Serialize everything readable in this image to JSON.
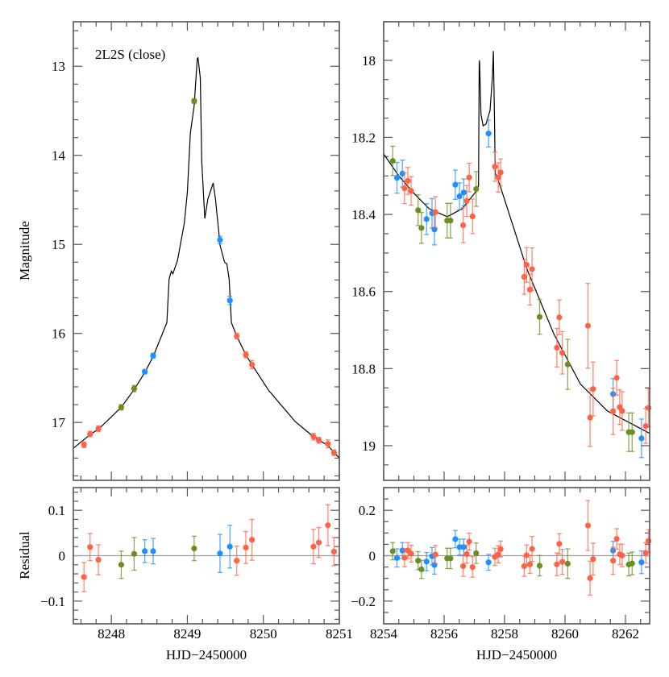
{
  "colors": {
    "red": "#ff6347",
    "green": "#6b8e23",
    "blue": "#1e90ff",
    "model": "#000000",
    "zero_line": "#999999"
  },
  "labels": {
    "ylabel_top": "Magnitude",
    "ylabel_bottom": "Residual",
    "xlabel_left": "HJD−2450000",
    "xlabel_right": "HJD−2450000",
    "annotation": "2L2S (close)"
  },
  "chart_data": [
    {
      "id": "left_lightcurve",
      "type": "scatter",
      "ylabel": "Magnitude",
      "xlim": [
        8247.5,
        8251.0
      ],
      "ylim": [
        12.5,
        17.65
      ],
      "y_inverted": true,
      "x_major": 1,
      "x_minor": 0.2,
      "y_major": 1,
      "y_minor": 0.2,
      "ytick_labels": [
        "13",
        "14",
        "15",
        "16",
        "17"
      ],
      "ytick_values": [
        13,
        14,
        15,
        16,
        17
      ],
      "annotation": "2L2S (close)",
      "points": [
        [
          8247.64,
          17.25,
          0.032,
          "red"
        ],
        [
          8247.72,
          17.13,
          0.03,
          "red"
        ],
        [
          8247.83,
          17.07,
          0.033,
          "red"
        ],
        [
          8248.13,
          16.83,
          0.03,
          "green"
        ],
        [
          8248.3,
          16.62,
          0.036,
          "green"
        ],
        [
          8248.44,
          16.43,
          0.025,
          "blue"
        ],
        [
          8248.55,
          16.25,
          0.028,
          "blue"
        ],
        [
          8249.09,
          13.39,
          0.027,
          "green"
        ],
        [
          8249.43,
          14.95,
          0.042,
          "blue"
        ],
        [
          8249.56,
          15.63,
          0.047,
          "blue"
        ],
        [
          8249.65,
          16.03,
          0.032,
          "red"
        ],
        [
          8249.77,
          16.24,
          0.035,
          "red"
        ],
        [
          8249.85,
          16.35,
          0.045,
          "red"
        ],
        [
          8250.66,
          17.16,
          0.038,
          "red"
        ],
        [
          8250.73,
          17.2,
          0.033,
          "red"
        ],
        [
          8250.85,
          17.24,
          0.045,
          "red"
        ],
        [
          8250.93,
          17.34,
          0.031,
          "red"
        ]
      ],
      "model": [
        [
          8247.5,
          17.29
        ],
        [
          8247.7,
          17.15
        ],
        [
          8247.85,
          17.06
        ],
        [
          8248.13,
          16.83
        ],
        [
          8248.3,
          16.63
        ],
        [
          8248.44,
          16.44
        ],
        [
          8248.55,
          16.26
        ],
        [
          8248.73,
          15.88
        ],
        [
          8248.76,
          15.39
        ],
        [
          8248.79,
          15.3
        ],
        [
          8248.81,
          15.33
        ],
        [
          8248.87,
          15.18
        ],
        [
          8248.96,
          14.76
        ],
        [
          8249.0,
          14.42
        ],
        [
          8249.04,
          13.75
        ],
        [
          8249.09,
          13.44
        ],
        [
          8249.13,
          12.92
        ],
        [
          8249.14,
          12.9
        ],
        [
          8249.17,
          13.13
        ],
        [
          8249.19,
          14.07
        ],
        [
          8249.23,
          14.71
        ],
        [
          8249.27,
          14.49
        ],
        [
          8249.34,
          14.31
        ],
        [
          8249.37,
          14.49
        ],
        [
          8249.41,
          14.83
        ],
        [
          8249.43,
          15.01
        ],
        [
          8249.49,
          15.2
        ],
        [
          8249.52,
          15.22
        ],
        [
          8249.55,
          15.39
        ],
        [
          8249.58,
          15.88
        ],
        [
          8249.65,
          16.03
        ],
        [
          8249.77,
          16.24
        ],
        [
          8249.85,
          16.35
        ],
        [
          8250.07,
          16.64
        ],
        [
          8250.42,
          16.99
        ],
        [
          8250.66,
          17.16
        ],
        [
          8250.85,
          17.26
        ],
        [
          8251.0,
          17.4
        ]
      ]
    },
    {
      "id": "right_lightcurve",
      "type": "scatter",
      "xlim": [
        8254.0,
        8262.8
      ],
      "ylim": [
        17.9,
        19.09
      ],
      "y_inverted": true,
      "x_major": 2,
      "x_minor": 0.5,
      "y_major": 0.2,
      "y_minor": 0.05,
      "ytick_labels": [
        "18",
        "18.2",
        "18.4",
        "18.6",
        "18.8",
        "19"
      ],
      "ytick_values": [
        18,
        18.2,
        18.4,
        18.6,
        18.8,
        19
      ],
      "points": [
        [
          8254.3,
          18.261,
          0.038,
          "green"
        ],
        [
          8254.44,
          18.305,
          0.04,
          "blue"
        ],
        [
          8254.62,
          18.294,
          0.035,
          "blue"
        ],
        [
          8254.69,
          18.332,
          0.04,
          "red"
        ],
        [
          8254.8,
          18.313,
          0.035,
          "red"
        ],
        [
          8254.91,
          18.339,
          0.037,
          "red"
        ],
        [
          8255.14,
          18.389,
          0.04,
          "green"
        ],
        [
          8255.25,
          18.435,
          0.04,
          "green"
        ],
        [
          8255.42,
          18.412,
          0.04,
          "blue"
        ],
        [
          8255.6,
          18.397,
          0.038,
          "blue"
        ],
        [
          8255.68,
          18.439,
          0.04,
          "blue"
        ],
        [
          8255.71,
          18.394,
          0.04,
          "red"
        ],
        [
          8256.1,
          18.416,
          0.045,
          "green"
        ],
        [
          8256.21,
          18.416,
          0.045,
          "green"
        ],
        [
          8256.37,
          18.323,
          0.038,
          "blue"
        ],
        [
          8256.51,
          18.353,
          0.035,
          "blue"
        ],
        [
          8256.65,
          18.343,
          0.035,
          "blue"
        ],
        [
          8256.63,
          18.428,
          0.045,
          "red"
        ],
        [
          8256.75,
          18.365,
          0.04,
          "red"
        ],
        [
          8256.83,
          18.304,
          0.037,
          "red"
        ],
        [
          8256.94,
          18.405,
          0.045,
          "red"
        ],
        [
          8257.06,
          18.334,
          0.045,
          "green"
        ],
        [
          8257.47,
          18.19,
          0.035,
          "blue"
        ],
        [
          8257.68,
          18.276,
          0.038,
          "red"
        ],
        [
          8257.79,
          18.304,
          0.038,
          "red"
        ],
        [
          8257.87,
          18.291,
          0.035,
          "red"
        ],
        [
          8258.65,
          18.562,
          0.045,
          "red"
        ],
        [
          8258.73,
          18.531,
          0.045,
          "red"
        ],
        [
          8258.84,
          18.595,
          0.04,
          "red"
        ],
        [
          8258.91,
          18.542,
          0.055,
          "red"
        ],
        [
          8259.16,
          18.666,
          0.045,
          "green"
        ],
        [
          8259.73,
          18.746,
          0.05,
          "red"
        ],
        [
          8259.81,
          18.667,
          0.045,
          "red"
        ],
        [
          8259.91,
          18.759,
          0.055,
          "red"
        ],
        [
          8260.09,
          18.789,
          0.065,
          "green"
        ],
        [
          8260.76,
          18.689,
          0.11,
          "red"
        ],
        [
          8260.83,
          18.927,
          0.075,
          "red"
        ],
        [
          8260.93,
          18.853,
          0.07,
          "red"
        ],
        [
          8261.59,
          18.866,
          0.04,
          "blue"
        ],
        [
          8261.59,
          18.911,
          0.06,
          "red"
        ],
        [
          8261.71,
          18.824,
          0.045,
          "red"
        ],
        [
          8261.81,
          18.9,
          0.045,
          "red"
        ],
        [
          8261.89,
          18.91,
          0.05,
          "red"
        ],
        [
          8262.11,
          18.965,
          0.05,
          "green"
        ],
        [
          8262.22,
          18.965,
          0.05,
          "green"
        ],
        [
          8262.53,
          18.981,
          0.05,
          "blue"
        ],
        [
          8262.67,
          18.949,
          0.045,
          "red"
        ],
        [
          8262.76,
          18.902,
          0.05,
          "red"
        ]
      ],
      "model": [
        [
          8254.0,
          18.243
        ],
        [
          8254.5,
          18.3
        ],
        [
          8255.0,
          18.345
        ],
        [
          8255.5,
          18.385
        ],
        [
          8256.1,
          18.406
        ],
        [
          8256.6,
          18.385
        ],
        [
          8257.09,
          18.337
        ],
        [
          8257.14,
          18.325
        ],
        [
          8257.16,
          18.012
        ],
        [
          8257.17,
          18.0
        ],
        [
          8257.22,
          18.14
        ],
        [
          8257.29,
          18.17
        ],
        [
          8257.39,
          18.165
        ],
        [
          8257.52,
          18.13
        ],
        [
          8257.6,
          18.04
        ],
        [
          8257.63,
          17.976
        ],
        [
          8257.67,
          18.165
        ],
        [
          8257.69,
          18.293
        ],
        [
          8257.85,
          18.325
        ],
        [
          8258.74,
          18.542
        ],
        [
          8259.63,
          18.71
        ],
        [
          8260.51,
          18.84
        ],
        [
          8261.4,
          18.91
        ],
        [
          8262.8,
          18.968
        ]
      ]
    },
    {
      "id": "left_residual",
      "type": "scatter",
      "ylabel": "Residual",
      "xlabel": "HJD−2450000",
      "xlim": [
        8247.5,
        8251.0
      ],
      "ylim": [
        -0.15,
        0.15
      ],
      "x_major": 1,
      "x_minor": 0.2,
      "y_major": 0.1,
      "y_minor": 0.02,
      "xtick_labels": [
        "8248",
        "8249",
        "8250",
        "8251"
      ],
      "xtick_values": [
        8248,
        8249,
        8250,
        8251
      ],
      "ytick_labels": [
        "0.1",
        "0",
        "−0.1"
      ],
      "ytick_values": [
        0.1,
        0,
        -0.1
      ],
      "points": [
        [
          8247.64,
          -0.047,
          0.032,
          "red"
        ],
        [
          8247.72,
          0.019,
          0.03,
          "red"
        ],
        [
          8247.83,
          -0.009,
          0.033,
          "red"
        ],
        [
          8248.13,
          -0.02,
          0.03,
          "green"
        ],
        [
          8248.3,
          0.004,
          0.036,
          "green"
        ],
        [
          8248.44,
          0.01,
          0.025,
          "blue"
        ],
        [
          8248.55,
          0.01,
          0.028,
          "blue"
        ],
        [
          8249.09,
          0.016,
          0.027,
          "green"
        ],
        [
          8249.43,
          0.005,
          0.042,
          "blue"
        ],
        [
          8249.56,
          0.02,
          0.047,
          "blue"
        ],
        [
          8249.65,
          -0.011,
          0.032,
          "red"
        ],
        [
          8249.77,
          0.018,
          0.035,
          "red"
        ],
        [
          8249.85,
          0.035,
          0.045,
          "red"
        ],
        [
          8250.66,
          0.02,
          0.038,
          "red"
        ],
        [
          8250.73,
          0.029,
          0.033,
          "red"
        ],
        [
          8250.85,
          0.067,
          0.045,
          "red"
        ],
        [
          8250.93,
          0.009,
          0.031,
          "red"
        ]
      ]
    },
    {
      "id": "right_residual",
      "type": "scatter",
      "xlabel": "HJD−2450000",
      "xlim": [
        8254.0,
        8262.8
      ],
      "ylim": [
        -0.3,
        0.3
      ],
      "x_major": 2,
      "x_minor": 0.5,
      "y_major": 0.2,
      "y_minor": 0.05,
      "xtick_labels": [
        "8254",
        "8256",
        "8258",
        "8260",
        "8262"
      ],
      "xtick_values": [
        8254,
        8256,
        8258,
        8260,
        8262
      ],
      "ytick_labels": [
        "0.2",
        "0",
        "−0.2"
      ],
      "ytick_values": [
        0.2,
        0,
        -0.2
      ],
      "points": [
        [
          8254.3,
          0.02,
          0.038,
          "green"
        ],
        [
          8254.44,
          -0.01,
          0.04,
          "blue"
        ],
        [
          8254.62,
          0.023,
          0.035,
          "blue"
        ],
        [
          8254.69,
          -0.009,
          0.04,
          "red"
        ],
        [
          8254.8,
          0.023,
          0.035,
          "red"
        ],
        [
          8254.91,
          0.009,
          0.037,
          "red"
        ],
        [
          8255.14,
          -0.022,
          0.04,
          "green"
        ],
        [
          8255.25,
          -0.06,
          0.04,
          "green"
        ],
        [
          8255.42,
          -0.026,
          0.04,
          "blue"
        ],
        [
          8255.6,
          -0.002,
          0.038,
          "blue"
        ],
        [
          8255.68,
          -0.041,
          0.04,
          "blue"
        ],
        [
          8255.71,
          0.005,
          0.04,
          "red"
        ],
        [
          8256.1,
          -0.012,
          0.045,
          "green"
        ],
        [
          8256.21,
          -0.012,
          0.045,
          "green"
        ],
        [
          8256.37,
          0.073,
          0.038,
          "blue"
        ],
        [
          8256.51,
          0.038,
          0.035,
          "blue"
        ],
        [
          8256.65,
          0.038,
          0.035,
          "blue"
        ],
        [
          8256.63,
          -0.046,
          0.045,
          "red"
        ],
        [
          8256.75,
          0.007,
          0.04,
          "red"
        ],
        [
          8256.83,
          0.062,
          0.037,
          "red"
        ],
        [
          8256.94,
          -0.05,
          0.045,
          "red"
        ],
        [
          8257.06,
          0.011,
          0.045,
          "green"
        ],
        [
          8257.47,
          -0.029,
          0.035,
          "blue"
        ],
        [
          8257.68,
          -0.005,
          0.038,
          "red"
        ],
        [
          8257.79,
          0.006,
          0.038,
          "red"
        ],
        [
          8257.87,
          0.029,
          0.035,
          "red"
        ],
        [
          8258.65,
          -0.046,
          0.045,
          "red"
        ],
        [
          8258.73,
          0.002,
          0.045,
          "red"
        ],
        [
          8258.84,
          -0.038,
          0.04,
          "red"
        ],
        [
          8258.91,
          0.03,
          0.055,
          "red"
        ],
        [
          8259.16,
          -0.044,
          0.045,
          "green"
        ],
        [
          8259.73,
          -0.038,
          0.05,
          "red"
        ],
        [
          8259.81,
          0.052,
          0.045,
          "red"
        ],
        [
          8259.91,
          -0.027,
          0.055,
          "red"
        ],
        [
          8260.09,
          -0.035,
          0.065,
          "green"
        ],
        [
          8260.76,
          0.133,
          0.11,
          "red"
        ],
        [
          8260.83,
          -0.099,
          0.075,
          "red"
        ],
        [
          8260.93,
          -0.015,
          0.07,
          "red"
        ],
        [
          8261.59,
          0.023,
          0.04,
          "blue"
        ],
        [
          8261.59,
          -0.022,
          0.06,
          "red"
        ],
        [
          8261.71,
          0.074,
          0.045,
          "red"
        ],
        [
          8261.81,
          0.006,
          0.045,
          "red"
        ],
        [
          8261.89,
          0.001,
          0.05,
          "red"
        ],
        [
          8262.11,
          -0.039,
          0.05,
          "green"
        ],
        [
          8262.22,
          -0.034,
          0.05,
          "green"
        ],
        [
          8262.53,
          -0.029,
          0.05,
          "blue"
        ],
        [
          8262.67,
          0.012,
          0.045,
          "red"
        ],
        [
          8262.76,
          0.065,
          0.05,
          "red"
        ]
      ]
    }
  ]
}
